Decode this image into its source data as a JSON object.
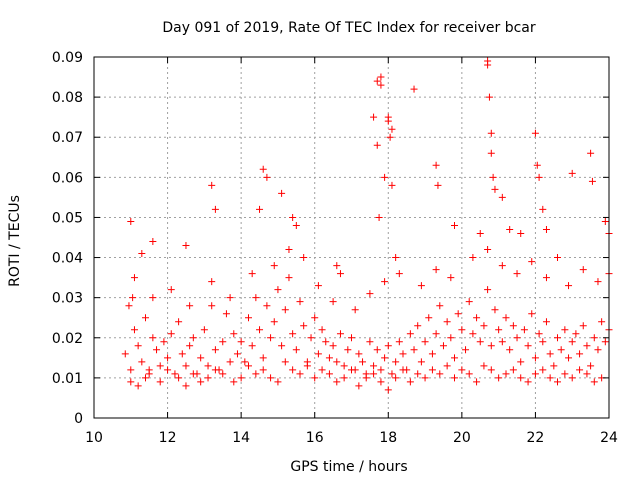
{
  "chart_data": {
    "type": "scatter",
    "title": "Day 091 of 2019, Rate Of TEC Index for receiver bcar",
    "xlabel": "GPS time / hours",
    "ylabel": "ROTI / TECUs",
    "xlim": [
      10,
      24
    ],
    "ylim": [
      0,
      0.09
    ],
    "x_ticks": [
      "10",
      "12",
      "14",
      "16",
      "18",
      "20",
      "22",
      "24"
    ],
    "y_ticks": [
      "0",
      "0.01",
      "0.02",
      "0.03",
      "0.04",
      "0.05",
      "0.06",
      "0.07",
      "0.08",
      "0.09"
    ],
    "grid": true,
    "marker": "+",
    "marker_color": "#ff0000",
    "series": [
      {
        "x": [
          10.85,
          10.95,
          11.0,
          11.05,
          11.1,
          11.2,
          11.3,
          11.4,
          11.5,
          11.6,
          11.7,
          11.8,
          11.9,
          12.0,
          12.1,
          12.2,
          12.3,
          12.4,
          12.5,
          12.6,
          12.7,
          12.8,
          12.9,
          13.0,
          13.1,
          13.2,
          13.3,
          13.4,
          13.5,
          13.6,
          13.7,
          13.8,
          13.9,
          14.0,
          14.1,
          14.2,
          14.3,
          14.4,
          14.5,
          14.6,
          14.7,
          14.8,
          14.9,
          15.0,
          15.1,
          15.2,
          15.3,
          15.4,
          15.5,
          15.6,
          15.7,
          15.8,
          15.9,
          16.0,
          16.1,
          16.2,
          16.3,
          16.4,
          16.5,
          16.6,
          16.7,
          16.8,
          16.9,
          17.0,
          17.1,
          17.2,
          17.3,
          17.4,
          17.5,
          17.6,
          17.7,
          17.8,
          17.9,
          18.0,
          18.1,
          18.2,
          18.3,
          18.4,
          18.5,
          18.6,
          18.7,
          18.8,
          18.9,
          19.0,
          19.1,
          19.2,
          19.3,
          19.4,
          19.5,
          19.6,
          19.7,
          19.8,
          19.9,
          20.0,
          20.1,
          20.2,
          20.3,
          20.4,
          20.5,
          20.6,
          20.7,
          20.8,
          20.9,
          21.0,
          21.1,
          21.2,
          21.3,
          21.4,
          21.5,
          21.6,
          21.7,
          21.8,
          21.9,
          22.0,
          22.1,
          22.2,
          22.3,
          22.4,
          22.5,
          22.6,
          22.7,
          22.8,
          22.9,
          23.0,
          23.1,
          23.2,
          23.3,
          23.4,
          23.5,
          23.6,
          23.7,
          23.8,
          23.9,
          24.0,
          11.0,
          11.2,
          11.4,
          11.5,
          11.8,
          12.0,
          12.3,
          12.5,
          12.7,
          12.9,
          13.1,
          13.3,
          13.5,
          13.8,
          14.0,
          14.2,
          14.4,
          14.6,
          14.8,
          15.0,
          15.2,
          15.4,
          15.6,
          15.8,
          16.0,
          16.2,
          16.4,
          16.6,
          16.8,
          17.0,
          17.2,
          17.4,
          17.6,
          17.8,
          18.0,
          18.2,
          18.4,
          18.6,
          18.8,
          19.0,
          19.2,
          19.4,
          19.6,
          19.8,
          20.0,
          20.2,
          20.4,
          20.6,
          20.8,
          21.0,
          21.2,
          21.4,
          21.6,
          21.8,
          22.0,
          22.2,
          22.4,
          22.6,
          22.8,
          23.0,
          23.2,
          23.4,
          23.6,
          23.8,
          11.1,
          11.6,
          12.1,
          12.6,
          13.2,
          13.7,
          14.3,
          14.9,
          15.3,
          15.7,
          16.1,
          16.5,
          17.1,
          17.5,
          17.9,
          18.3,
          18.9,
          19.3,
          19.7,
          20.3,
          20.7,
          21.1,
          21.5,
          21.9,
          22.3,
          22.9,
          23.3,
          23.7,
          24.0,
          11.0,
          11.3,
          11.6,
          12.5,
          13.2,
          13.3,
          14.6,
          14.7,
          15.4,
          16.6,
          16.7,
          17.6,
          17.7,
          17.75,
          17.8,
          17.9,
          18.0,
          18.05,
          18.1,
          18.2,
          18.7,
          19.3,
          19.35,
          19.8,
          20.5,
          20.7,
          20.75,
          20.8,
          20.85,
          20.9,
          21.1,
          21.3,
          21.6,
          22.0,
          22.05,
          22.1,
          22.2,
          22.3,
          22.6,
          23.0,
          23.5,
          23.55,
          23.9,
          24.0,
          17.7,
          17.8,
          18.0,
          20.7,
          20.8,
          18.1,
          14.5,
          15.1,
          15.5
        ],
        "y": [
          0.016,
          0.028,
          0.012,
          0.03,
          0.022,
          0.018,
          0.014,
          0.025,
          0.012,
          0.02,
          0.017,
          0.013,
          0.019,
          0.015,
          0.021,
          0.011,
          0.024,
          0.016,
          0.013,
          0.018,
          0.02,
          0.011,
          0.015,
          0.022,
          0.013,
          0.028,
          0.017,
          0.012,
          0.019,
          0.026,
          0.014,
          0.021,
          0.016,
          0.019,
          0.014,
          0.025,
          0.018,
          0.03,
          0.022,
          0.015,
          0.028,
          0.02,
          0.024,
          0.032,
          0.018,
          0.027,
          0.035,
          0.021,
          0.017,
          0.029,
          0.023,
          0.014,
          0.02,
          0.025,
          0.016,
          0.022,
          0.019,
          0.015,
          0.018,
          0.014,
          0.021,
          0.013,
          0.017,
          0.02,
          0.012,
          0.016,
          0.014,
          0.011,
          0.019,
          0.013,
          0.017,
          0.012,
          0.015,
          0.018,
          0.011,
          0.014,
          0.019,
          0.016,
          0.012,
          0.021,
          0.017,
          0.023,
          0.014,
          0.019,
          0.025,
          0.016,
          0.021,
          0.028,
          0.018,
          0.024,
          0.02,
          0.015,
          0.026,
          0.022,
          0.017,
          0.029,
          0.021,
          0.025,
          0.019,
          0.023,
          0.032,
          0.018,
          0.027,
          0.022,
          0.019,
          0.025,
          0.017,
          0.023,
          0.02,
          0.014,
          0.022,
          0.018,
          0.026,
          0.015,
          0.021,
          0.019,
          0.024,
          0.016,
          0.013,
          0.02,
          0.017,
          0.022,
          0.015,
          0.019,
          0.021,
          0.016,
          0.023,
          0.018,
          0.013,
          0.02,
          0.017,
          0.024,
          0.019,
          0.022,
          0.009,
          0.008,
          0.01,
          0.011,
          0.009,
          0.012,
          0.01,
          0.008,
          0.011,
          0.009,
          0.01,
          0.012,
          0.011,
          0.009,
          0.01,
          0.013,
          0.011,
          0.012,
          0.01,
          0.009,
          0.014,
          0.012,
          0.011,
          0.013,
          0.01,
          0.012,
          0.011,
          0.009,
          0.01,
          0.012,
          0.008,
          0.01,
          0.011,
          0.009,
          0.007,
          0.01,
          0.012,
          0.009,
          0.011,
          0.01,
          0.012,
          0.011,
          0.013,
          0.01,
          0.012,
          0.011,
          0.009,
          0.013,
          0.012,
          0.01,
          0.011,
          0.012,
          0.01,
          0.009,
          0.011,
          0.012,
          0.01,
          0.009,
          0.011,
          0.01,
          0.012,
          0.011,
          0.009,
          0.01,
          0.035,
          0.03,
          0.032,
          0.028,
          0.034,
          0.03,
          0.036,
          0.038,
          0.042,
          0.04,
          0.033,
          0.029,
          0.027,
          0.031,
          0.034,
          0.036,
          0.033,
          0.037,
          0.035,
          0.04,
          0.042,
          0.038,
          0.036,
          0.039,
          0.035,
          0.033,
          0.037,
          0.034,
          0.036,
          0.049,
          0.041,
          0.044,
          0.043,
          0.058,
          0.052,
          0.062,
          0.06,
          0.05,
          0.038,
          0.036,
          0.075,
          0.068,
          0.05,
          0.085,
          0.06,
          0.075,
          0.07,
          0.058,
          0.04,
          0.082,
          0.063,
          0.058,
          0.048,
          0.046,
          0.088,
          0.08,
          0.071,
          0.06,
          0.057,
          0.055,
          0.047,
          0.046,
          0.071,
          0.063,
          0.06,
          0.052,
          0.047,
          0.04,
          0.061,
          0.066,
          0.059,
          0.049,
          0.046,
          0.084,
          0.083,
          0.074,
          0.089,
          0.066,
          0.072,
          0.052,
          0.056,
          0.048
        ]
      }
    ]
  }
}
